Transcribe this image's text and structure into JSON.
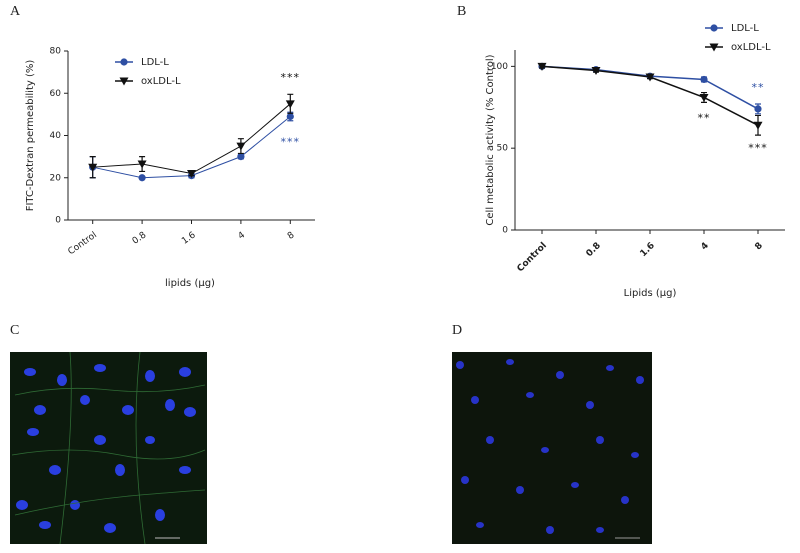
{
  "chart_data": [
    {
      "type": "line",
      "label": "A",
      "y_label": "FITC-Dextran permeability (%)",
      "x_label": "lipids (µg)",
      "categories": [
        "Control",
        "0.8",
        "1.6",
        "4",
        "8"
      ],
      "series": [
        {
          "name": "LDL-L",
          "color": "#2e4fa3",
          "marker": "circle",
          "values": [
            25,
            20,
            21,
            30,
            49
          ],
          "errors": [
            5,
            0.5,
            1,
            1,
            2
          ]
        },
        {
          "name": "oxLDL-L",
          "color": "#111111",
          "marker": "triangle-down",
          "values": [
            25,
            26.5,
            22,
            35,
            55
          ],
          "errors": [
            5,
            3.5,
            1,
            3.5,
            4.5
          ]
        }
      ],
      "annotations": [
        {
          "text": "***",
          "x": "8",
          "color": "#111111"
        },
        {
          "text": "***",
          "x": "8",
          "color": "#2e4fa3"
        }
      ],
      "ylim": [
        0,
        80
      ],
      "yticks": [
        0,
        20,
        40,
        60,
        80
      ],
      "bold_x_labels": false
    },
    {
      "type": "line",
      "label": "B",
      "y_label": "Cell metabolic activity (% Control)",
      "x_label": "Lipids (µg)",
      "categories": [
        "Control",
        "0.8",
        "1.6",
        "4",
        "8"
      ],
      "series": [
        {
          "name": "LDL-L",
          "color": "#2e4fa3",
          "marker": "circle",
          "values": [
            100,
            98,
            94,
            92,
            74
          ],
          "errors": [
            1,
            1,
            1,
            1.5,
            3
          ]
        },
        {
          "name": "oxLDL-L",
          "color": "#111111",
          "marker": "triangle-down",
          "values": [
            100,
            97.5,
            93.5,
            81,
            64
          ],
          "errors": [
            1,
            1,
            1,
            3,
            6
          ]
        }
      ],
      "annotations": [
        {
          "text": "**",
          "x": "8",
          "color": "#2e4fa3"
        },
        {
          "text": "**",
          "x": "4",
          "color": "#111111"
        },
        {
          "text": "***",
          "x": "8",
          "color": "#111111"
        }
      ],
      "ylim": [
        0,
        110
      ],
      "yticks": [
        0,
        50,
        100
      ],
      "bold_x_labels": true
    }
  ],
  "panels": [
    {
      "label": "C"
    },
    {
      "label": "D"
    }
  ]
}
